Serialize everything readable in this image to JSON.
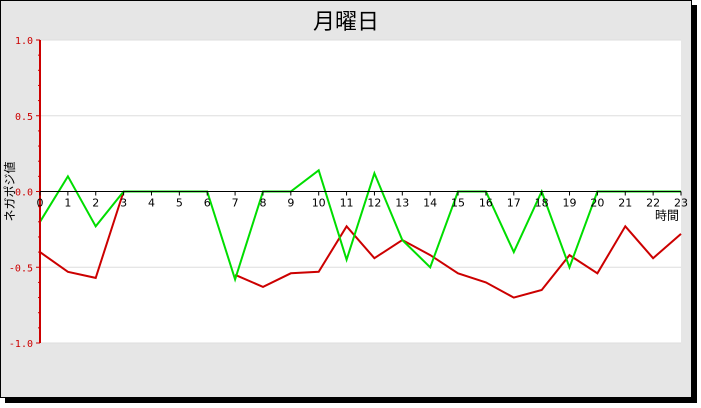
{
  "chart_data": {
    "type": "line",
    "title": "月曜日",
    "xlabel": "時間",
    "ylabel": "ネガポジ値",
    "x": [
      0,
      1,
      2,
      3,
      4,
      5,
      6,
      7,
      8,
      9,
      10,
      11,
      12,
      13,
      14,
      15,
      16,
      17,
      18,
      19,
      20,
      21,
      22,
      23
    ],
    "xlim": [
      0,
      23
    ],
    "ylim": [
      -1.0,
      1.0
    ],
    "yticks": [
      "1.0",
      "0.5",
      "0.0",
      "-0.5",
      "-1.0"
    ],
    "ytick_values": [
      1.0,
      0.5,
      0.0,
      -0.5,
      -1.0
    ],
    "grid": true,
    "series": [
      {
        "color": "#cc0000",
        "values": [
          -0.4,
          -0.53,
          -0.57,
          0.0,
          null,
          null,
          null,
          -0.55,
          -0.63,
          -0.54,
          -0.53,
          -0.23,
          -0.44,
          -0.32,
          -0.42,
          -0.54,
          -0.6,
          -0.7,
          -0.65,
          -0.42,
          -0.54,
          -0.23,
          -0.44,
          -0.28
        ]
      },
      {
        "color": "#00dd00",
        "values": [
          -0.2,
          0.1,
          -0.23,
          0.0,
          0.0,
          0.0,
          0.0,
          -0.58,
          0.0,
          0.0,
          0.14,
          -0.45,
          0.12,
          -0.32,
          -0.5,
          0.0,
          0.0,
          -0.4,
          0.0,
          -0.5,
          0.0,
          0.0,
          0.0,
          0.0
        ]
      }
    ],
    "zero_line_color": "#e0a000"
  }
}
